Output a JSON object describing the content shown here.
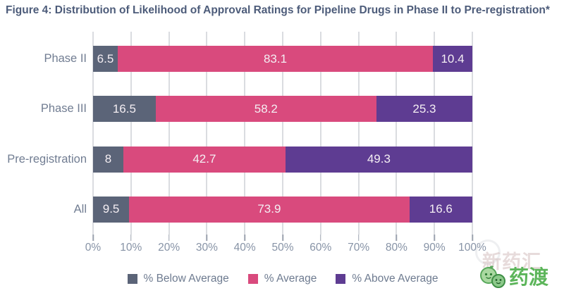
{
  "title": "Figure 4: Distribution of Likelihood of Approval Ratings for Pipeline Drugs in Phase II to Pre-registration*",
  "chart_data": {
    "type": "bar",
    "orientation": "horizontal",
    "stacked": true,
    "title": "Figure 4: Distribution of Likelihood of Approval Ratings for Pipeline Drugs in Phase II to Pre-registration*",
    "categories": [
      "Phase II",
      "Phase III",
      "Pre-registration",
      "All"
    ],
    "series": [
      {
        "name": "% Below Average",
        "color": "#5b6478",
        "values": [
          6.5,
          16.5,
          8,
          9.5
        ]
      },
      {
        "name": "% Average",
        "color": "#d94a7d",
        "values": [
          83.1,
          58.2,
          42.7,
          73.9
        ]
      },
      {
        "name": "% Above Average",
        "color": "#5e3c92",
        "values": [
          10.4,
          25.3,
          49.3,
          16.6
        ]
      }
    ],
    "x_axis": {
      "min": 0,
      "max": 100,
      "ticks": [
        "0%",
        "10%",
        "20%",
        "30%",
        "40%",
        "50%",
        "60%",
        "70%",
        "80%",
        "90%",
        "100%"
      ]
    },
    "legend": [
      "% Below Average",
      "% Average",
      "% Above Average"
    ],
    "legend_position": "bottom",
    "grid": "vertical-only",
    "value_labels": "inside-segments"
  },
  "colors": {
    "title_text": "#4d5c7a",
    "axis_text": "#8793a6",
    "category_text": "#717d92",
    "gridline": "#b5b9c1",
    "watermark_green": "#5cb55a"
  },
  "watermark": {
    "brand_text": "药渡",
    "background_text": "新药汇"
  }
}
